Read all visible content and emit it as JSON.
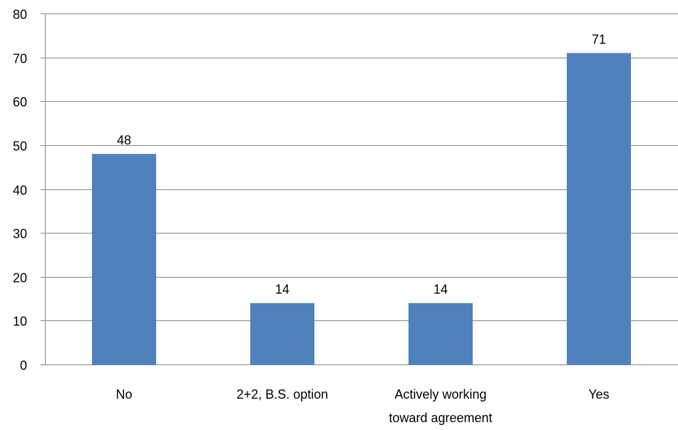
{
  "chart_data": {
    "type": "bar",
    "categories": [
      "No",
      "2+2, B.S. option",
      "Actively working toward agreement",
      "Yes"
    ],
    "category_lines": [
      [
        "No"
      ],
      [
        "2+2, B.S. option"
      ],
      [
        "Actively working",
        "toward agreement"
      ],
      [
        "Yes"
      ]
    ],
    "values": [
      48,
      14,
      14,
      71
    ],
    "data_labels": [
      "48",
      "14",
      "14",
      "71"
    ],
    "ylim": [
      0,
      80
    ],
    "yticks": [
      0,
      10,
      20,
      30,
      40,
      50,
      60,
      70,
      80
    ],
    "title": "",
    "xlabel": "",
    "ylabel": "",
    "grid": "horizontal",
    "legend": "none",
    "colors": {
      "bar": "#4F81BD",
      "grid": "#868686",
      "axis": "#868686"
    }
  }
}
